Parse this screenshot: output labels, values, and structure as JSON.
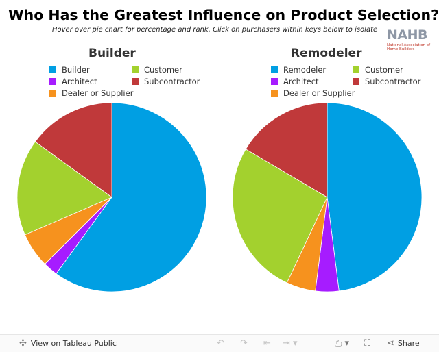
{
  "title": "Who Has the Greatest Influence on Product Selection?",
  "subtitle": "Hover over pie chart for percentage and rank. Click on purchasers within keys below to isolate",
  "logo": {
    "name": "NAHB",
    "tagline": "National Association of Home Builders"
  },
  "colors": {
    "builder": "#009fe3",
    "customer": "#a3d12e",
    "architect": "#a61cff",
    "subcontractor": "#c0393a",
    "dealer": "#f6921e"
  },
  "chart_data": [
    {
      "type": "pie",
      "title": "Builder",
      "legend": [
        "Builder",
        "Customer",
        "Architect",
        "Subcontractor",
        "Dealer or Supplier"
      ],
      "slices": [
        {
          "label": "Builder",
          "value": 60.0,
          "color": "#009fe3"
        },
        {
          "label": "Architect",
          "value": 2.5,
          "color": "#a61cff"
        },
        {
          "label": "Dealer or Supplier",
          "value": 6.0,
          "color": "#f6921e"
        },
        {
          "label": "Customer",
          "value": 16.5,
          "color": "#a3d12e"
        },
        {
          "label": "Subcontractor",
          "value": 15.0,
          "color": "#c0393a"
        }
      ]
    },
    {
      "type": "pie",
      "title": "Remodeler",
      "legend": [
        "Remodeler",
        "Customer",
        "Architect",
        "Subcontractor",
        "Dealer or Supplier"
      ],
      "slices": [
        {
          "label": "Remodeler",
          "value": 48.0,
          "color": "#009fe3"
        },
        {
          "label": "Architect",
          "value": 4.0,
          "color": "#a61cff"
        },
        {
          "label": "Dealer or Supplier",
          "value": 5.0,
          "color": "#f6921e"
        },
        {
          "label": "Customer",
          "value": 26.5,
          "color": "#a3d12e"
        },
        {
          "label": "Subcontractor",
          "value": 16.5,
          "color": "#c0393a"
        }
      ]
    }
  ],
  "toolbar": {
    "view_label": "View on Tableau Public",
    "share_label": "Share",
    "icons": [
      "undo-icon",
      "redo-icon",
      "revert-icon",
      "forward-icon",
      "download-icon",
      "fullscreen-icon",
      "share-icon"
    ]
  }
}
